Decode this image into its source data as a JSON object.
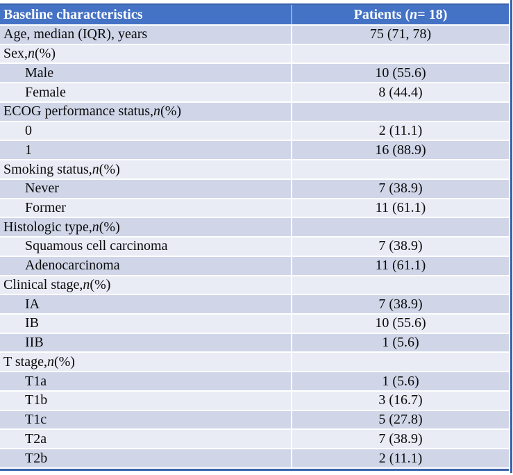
{
  "colors": {
    "header_bg": "#4472C4",
    "band_dark": "#D0D6E8",
    "band_light": "#E9EBF5",
    "border_line": "#3A63AC",
    "grid_white": "#FFFFFF",
    "header_text": "#FFFFFF",
    "body_text": "#0B0B0B"
  },
  "header": {
    "col1": "Baseline characteristics",
    "col2_parts": [
      "Patients (",
      {
        "i": "n"
      },
      " = 18)"
    ]
  },
  "rows": [
    {
      "label_parts": [
        "Age, median (IQR), years"
      ],
      "value": "75 (71, 78)",
      "indent": false
    },
    {
      "label_parts": [
        "Sex, ",
        {
          "i": "n"
        },
        " (%)"
      ],
      "value": "",
      "indent": false
    },
    {
      "label_parts": [
        "Male"
      ],
      "value": "10 (55.6)",
      "indent": true
    },
    {
      "label_parts": [
        "Female"
      ],
      "value": "8 (44.4)",
      "indent": true
    },
    {
      "label_parts": [
        "ECOG performance status, ",
        {
          "i": "n"
        },
        " (%)"
      ],
      "value": "",
      "indent": false
    },
    {
      "label_parts": [
        "0"
      ],
      "value": "2 (11.1)",
      "indent": true
    },
    {
      "label_parts": [
        "1"
      ],
      "value": "16 (88.9)",
      "indent": true
    },
    {
      "label_parts": [
        "Smoking status, ",
        {
          "i": "n"
        },
        " (%)"
      ],
      "value": "",
      "indent": false
    },
    {
      "label_parts": [
        "Never"
      ],
      "value": "7 (38.9)",
      "indent": true
    },
    {
      "label_parts": [
        "Former"
      ],
      "value": "11 (61.1)",
      "indent": true
    },
    {
      "label_parts": [
        "Histologic type, ",
        {
          "i": "n"
        },
        " (%)"
      ],
      "value": "",
      "indent": false
    },
    {
      "label_parts": [
        "Squamous cell carcinoma"
      ],
      "value": "7 (38.9)",
      "indent": true
    },
    {
      "label_parts": [
        "Adenocarcinoma"
      ],
      "value": "11 (61.1)",
      "indent": true
    },
    {
      "label_parts": [
        "Clinical stage, ",
        {
          "i": "n"
        },
        " (%)"
      ],
      "value": "",
      "indent": false
    },
    {
      "label_parts": [
        "IA"
      ],
      "value": "7 (38.9)",
      "indent": true
    },
    {
      "label_parts": [
        "IB"
      ],
      "value": "10 (55.6)",
      "indent": true
    },
    {
      "label_parts": [
        "IIB"
      ],
      "value": "1 (5.6)",
      "indent": true
    },
    {
      "label_parts": [
        "T stage, ",
        {
          "i": "n"
        },
        " (%)"
      ],
      "value": "",
      "indent": false
    },
    {
      "label_parts": [
        "T1a"
      ],
      "value": "1 (5.6)",
      "indent": true
    },
    {
      "label_parts": [
        "T1b"
      ],
      "value": "3 (16.7)",
      "indent": true
    },
    {
      "label_parts": [
        "T1c"
      ],
      "value": "5 (27.8)",
      "indent": true
    },
    {
      "label_parts": [
        "T2a"
      ],
      "value": "7 (38.9)",
      "indent": true
    },
    {
      "label_parts": [
        "T2b"
      ],
      "value": "2 (11.1)",
      "indent": true
    }
  ]
}
